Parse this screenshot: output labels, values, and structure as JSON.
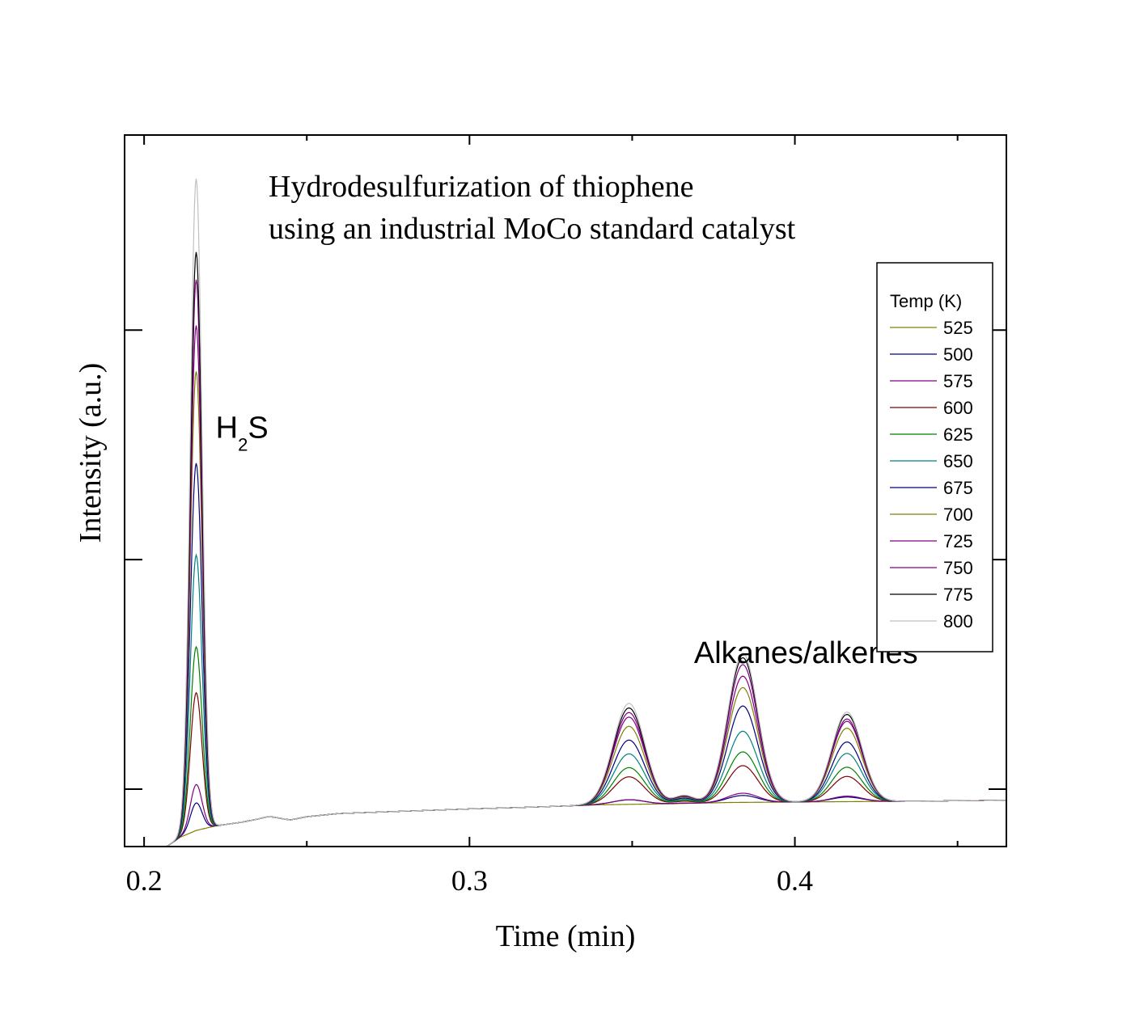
{
  "chart_data": {
    "type": "line",
    "title_lines": [
      "Hydrodesulfurization of thiophene",
      "using an industrial MoCo standard catalyst"
    ],
    "xlabel": "Time (min)",
    "ylabel": "Intensity (a.u.)",
    "xlim": [
      0.194,
      0.465
    ],
    "ylim": [
      0,
      1.55
    ],
    "x_ticks": [
      0.2,
      0.3,
      0.4
    ],
    "x_tick_labels": [
      "0.2",
      "0.3",
      "0.4"
    ],
    "x_minor_ticks": [
      0.25,
      0.35,
      0.45
    ],
    "y_ticks": [
      0.125,
      0.625,
      1.125
    ],
    "y_tick_labels_shown": false,
    "grid": false,
    "legend": {
      "title": "Temp (K)",
      "position": "right"
    },
    "annotations": [
      {
        "text": "H",
        "sub": "2",
        "tail": "S",
        "x": 0.222,
        "y": 0.89
      },
      {
        "text": "Alkanes/alkenes",
        "x": 0.369,
        "y": 0.4
      }
    ],
    "peak_times": [
      0.216,
      0.349,
      0.384,
      0.416
    ],
    "baseline_points": [
      [
        0.2,
        0.0
      ],
      [
        0.207,
        0.0
      ],
      [
        0.211,
        0.02
      ],
      [
        0.216,
        0.035
      ],
      [
        0.222,
        0.045
      ],
      [
        0.23,
        0.053
      ],
      [
        0.235,
        0.06
      ],
      [
        0.238,
        0.065
      ],
      [
        0.24,
        0.064
      ],
      [
        0.243,
        0.06
      ],
      [
        0.245,
        0.058
      ],
      [
        0.25,
        0.065
      ],
      [
        0.26,
        0.072
      ],
      [
        0.28,
        0.077
      ],
      [
        0.3,
        0.082
      ],
      [
        0.32,
        0.086
      ],
      [
        0.34,
        0.091
      ],
      [
        0.36,
        0.093
      ],
      [
        0.38,
        0.096
      ],
      [
        0.4,
        0.097
      ],
      [
        0.42,
        0.098
      ],
      [
        0.44,
        0.099
      ],
      [
        0.465,
        0.101
      ]
    ],
    "series": [
      {
        "name": "525",
        "color": "#808000",
        "peaks": [
          0.0,
          0.0,
          0.0,
          0.0
        ]
      },
      {
        "name": "500",
        "color": "#000080",
        "peaks": [
          0.06,
          0.01,
          0.015,
          0.01
        ]
      },
      {
        "name": "575",
        "color": "#800080",
        "peaks": [
          0.1,
          0.01,
          0.02,
          0.012
        ]
      },
      {
        "name": "600",
        "color": "#800000",
        "peaks": [
          0.3,
          0.06,
          0.08,
          0.055
        ]
      },
      {
        "name": "625",
        "color": "#008000",
        "peaks": [
          0.4,
          0.08,
          0.11,
          0.075
        ]
      },
      {
        "name": "650",
        "color": "#008080",
        "peaks": [
          0.6,
          0.11,
          0.155,
          0.105
        ]
      },
      {
        "name": "675",
        "color": "#000080",
        "peaks": [
          0.8,
          0.14,
          0.21,
          0.13
        ]
      },
      {
        "name": "700",
        "color": "#808000",
        "peaks": [
          1.0,
          0.17,
          0.25,
          0.16
        ]
      },
      {
        "name": "725",
        "color": "#800080",
        "peaks": [
          1.1,
          0.19,
          0.275,
          0.175
        ]
      },
      {
        "name": "750",
        "color": "#800080",
        "peaks": [
          1.2,
          0.2,
          0.3,
          0.18
        ]
      },
      {
        "name": "775",
        "color": "#000000",
        "peaks": [
          1.26,
          0.21,
          0.315,
          0.19
        ]
      },
      {
        "name": "800",
        "color": "#c0c0c0",
        "peaks": [
          1.42,
          0.22,
          0.325,
          0.195
        ]
      }
    ]
  }
}
